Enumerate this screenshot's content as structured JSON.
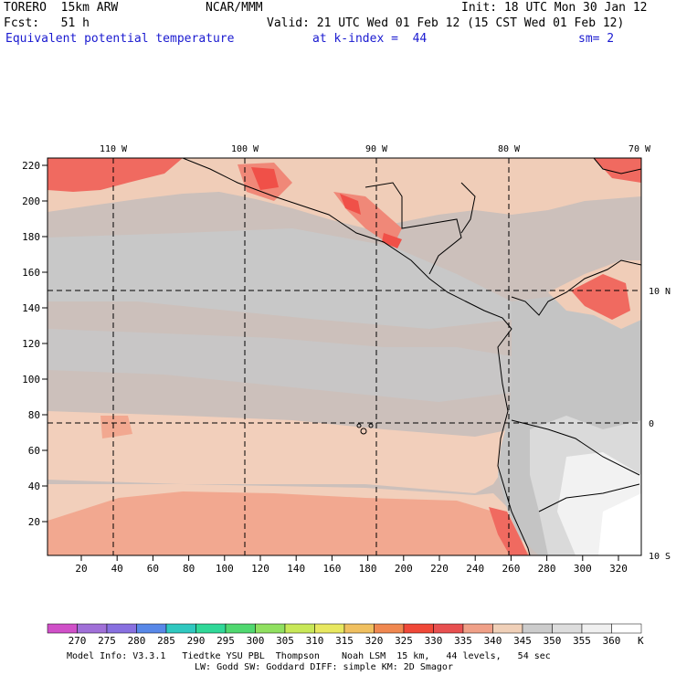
{
  "header": {
    "model": "TORERO  15km ARW",
    "org": "NCAR/MMM",
    "init": "Init: 18 UTC Mon 30 Jan 12",
    "fcst": "Fcst:   51 h",
    "valid": "Valid: 21 UTC Wed 01 Feb 12 (15 CST Wed 01 Feb 12)",
    "field": "Equivalent potential temperature",
    "level": "at k-index =  44",
    "smooth": "sm= 2"
  },
  "map": {
    "lon_labels": [
      "110 W",
      "100 W",
      "90 W",
      "80 W",
      "70 W"
    ],
    "lat_labels": [
      "10 N",
      "0",
      "10 S"
    ],
    "y_ticks": [
      "220",
      "200",
      "180",
      "160",
      "140",
      "120",
      "100",
      "80",
      "60",
      "40",
      "20"
    ],
    "x_ticks": [
      "20",
      "40",
      "60",
      "80",
      "100",
      "120",
      "140",
      "160",
      "180",
      "200",
      "220",
      "240",
      "260",
      "280",
      "300",
      "320"
    ],
    "grid_lines": true
  },
  "colorbar": {
    "unit": "K",
    "levels": [
      "270",
      "275",
      "280",
      "285",
      "290",
      "295",
      "300",
      "305",
      "310",
      "315",
      "320",
      "325",
      "330",
      "335",
      "340",
      "345",
      "350",
      "355",
      "360"
    ],
    "colors": [
      "#d050c8",
      "#a070d8",
      "#8870e0",
      "#5888e8",
      "#30c8c0",
      "#30d898",
      "#50d870",
      "#90e060",
      "#c8e858",
      "#e8e860",
      "#f0c060",
      "#f08850",
      "#f04838",
      "#e85050",
      "#f0a088",
      "#f0d0b8",
      "#cccccc",
      "#dddddd",
      "#f0f0f0",
      "#ffffff"
    ]
  },
  "footer": {
    "line1": "Model Info: V3.3.1   Tiedtke YSU PBL  Thompson    Noah LSM  15 km,   44 levels,   54 sec",
    "line2": "LW: Godd SW: Goddard DIFF: simple KM: 2D Smagor"
  }
}
